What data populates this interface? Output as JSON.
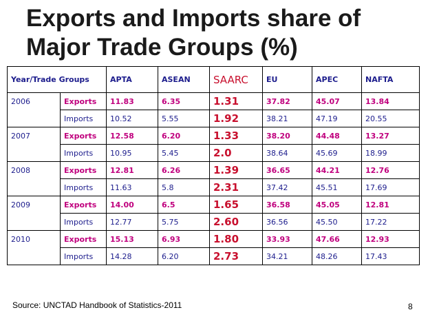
{
  "title": {
    "line1": "Exports and Imports share of",
    "line2": "Major Trade Groups (%)"
  },
  "table": {
    "header": {
      "year_groups": "Year/Trade Groups",
      "apta": "APTA",
      "asean": "ASEAN",
      "saarc": "SAARC",
      "eu": "EU",
      "apec": "APEC",
      "nafta": "NAFTA"
    },
    "rows": [
      {
        "year": "2006",
        "exports": {
          "label": "Exports",
          "apta": "11.83",
          "asean": "6.35",
          "saarc": "1.31",
          "eu": "37.82",
          "apec": "45.07",
          "nafta": "13.84"
        },
        "imports": {
          "label": "Imports",
          "apta": "10.52",
          "asean": "5.55",
          "saarc": "1.92",
          "eu": "38.21",
          "apec": "47.19",
          "nafta": "20.55"
        }
      },
      {
        "year": "2007",
        "exports": {
          "label": "Exports",
          "apta": "12.58",
          "asean": "6.20",
          "saarc": "1.33",
          "eu": "38.20",
          "apec": "44.48",
          "nafta": "13.27"
        },
        "imports": {
          "label": "Imports",
          "apta": "10.95",
          "asean": "5.45",
          "saarc": "2.0",
          "eu": "38.64",
          "apec": "45.69",
          "nafta": "18.99"
        }
      },
      {
        "year": "2008",
        "exports": {
          "label": "Exports",
          "apta": "12.81",
          "asean": "6.26",
          "saarc": "1.39",
          "eu": "36.65",
          "apec": "44.21",
          "nafta": "12.76"
        },
        "imports": {
          "label": "Imports",
          "apta": "11.63",
          "asean": "5.8",
          "saarc": "2.31",
          "eu": "37.42",
          "apec": "45.51",
          "nafta": "17.69"
        }
      },
      {
        "year": "2009",
        "exports": {
          "label": "Exports",
          "apta": "14.00",
          "asean": "6.5",
          "saarc": "1.65",
          "eu": "36.58",
          "apec": "45.05",
          "nafta": "12.81"
        },
        "imports": {
          "label": "Imports",
          "apta": "12.77",
          "asean": "5.75",
          "saarc": "2.60",
          "eu": "36.56",
          "apec": "45.50",
          "nafta": "17.22"
        }
      },
      {
        "year": "2010",
        "exports": {
          "label": "Exports",
          "apta": "15.13",
          "asean": "6.93",
          "saarc": "1.80",
          "eu": "33.93",
          "apec": "47.66",
          "nafta": "12.93"
        },
        "imports": {
          "label": "Imports",
          "apta": "14.28",
          "asean": "6.20",
          "saarc": "2.73",
          "eu": "34.21",
          "apec": "48.26",
          "nafta": "17.43"
        }
      }
    ]
  },
  "footer": {
    "source": "Source: UNCTAD Handbook of Statistics-2011",
    "page": "8"
  },
  "colors": {
    "header_text": "#1c1c8c",
    "exports_text": "#c0007e",
    "saarc_text": "#c8102e",
    "imports_text": "#1c1c8c"
  }
}
